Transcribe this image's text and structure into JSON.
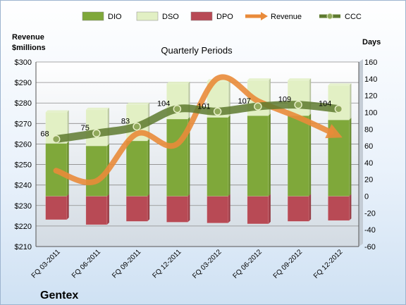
{
  "chart_data": {
    "type": "bar",
    "title": "Quarterly Periods",
    "company": "Gentex",
    "left_axis_label": "Revenue\n$millions",
    "right_axis_label": "Days",
    "categories": [
      "FQ 03-2011",
      "FQ 06-2011",
      "FQ 09-2011",
      "FQ 12-2011",
      "FQ 03-2012",
      "FQ 06-2012",
      "FQ 09-2012",
      "FQ 12-2012"
    ],
    "left_axis": {
      "min": 210,
      "max": 300,
      "step": 10,
      "prefix": "$"
    },
    "right_axis": {
      "min": -60,
      "max": 160,
      "step": 20
    },
    "grid": true,
    "legend_position": "top",
    "series": [
      {
        "name": "DIO",
        "kind": "stacked-bar",
        "axis": "right",
        "color": "#7fa83a",
        "values": [
          63,
          60,
          66,
          92,
          94,
          96,
          96,
          91
        ]
      },
      {
        "name": "DSO",
        "kind": "stacked-bar",
        "axis": "right",
        "color": "#e2f0c4",
        "values": [
          37,
          43,
          43,
          42,
          43,
          42,
          42,
          41
        ]
      },
      {
        "name": "DPO",
        "kind": "bar-negative",
        "axis": "right",
        "color": "#b84a55",
        "values": [
          -28,
          -34,
          -30,
          -31,
          -32,
          -33,
          -30,
          -29
        ]
      },
      {
        "name": "Revenue",
        "kind": "line",
        "axis": "left",
        "color": "#e98b3a",
        "values": [
          247,
          242,
          265,
          260,
          292,
          281,
          273,
          264
        ]
      },
      {
        "name": "CCC",
        "kind": "line",
        "axis": "right",
        "color": "#5e7a2f",
        "values": [
          68,
          75,
          83,
          104,
          101,
          107,
          109,
          104
        ],
        "labels": [
          "68",
          "75",
          "83",
          "104",
          "101",
          "107",
          "109",
          "104"
        ]
      }
    ]
  }
}
